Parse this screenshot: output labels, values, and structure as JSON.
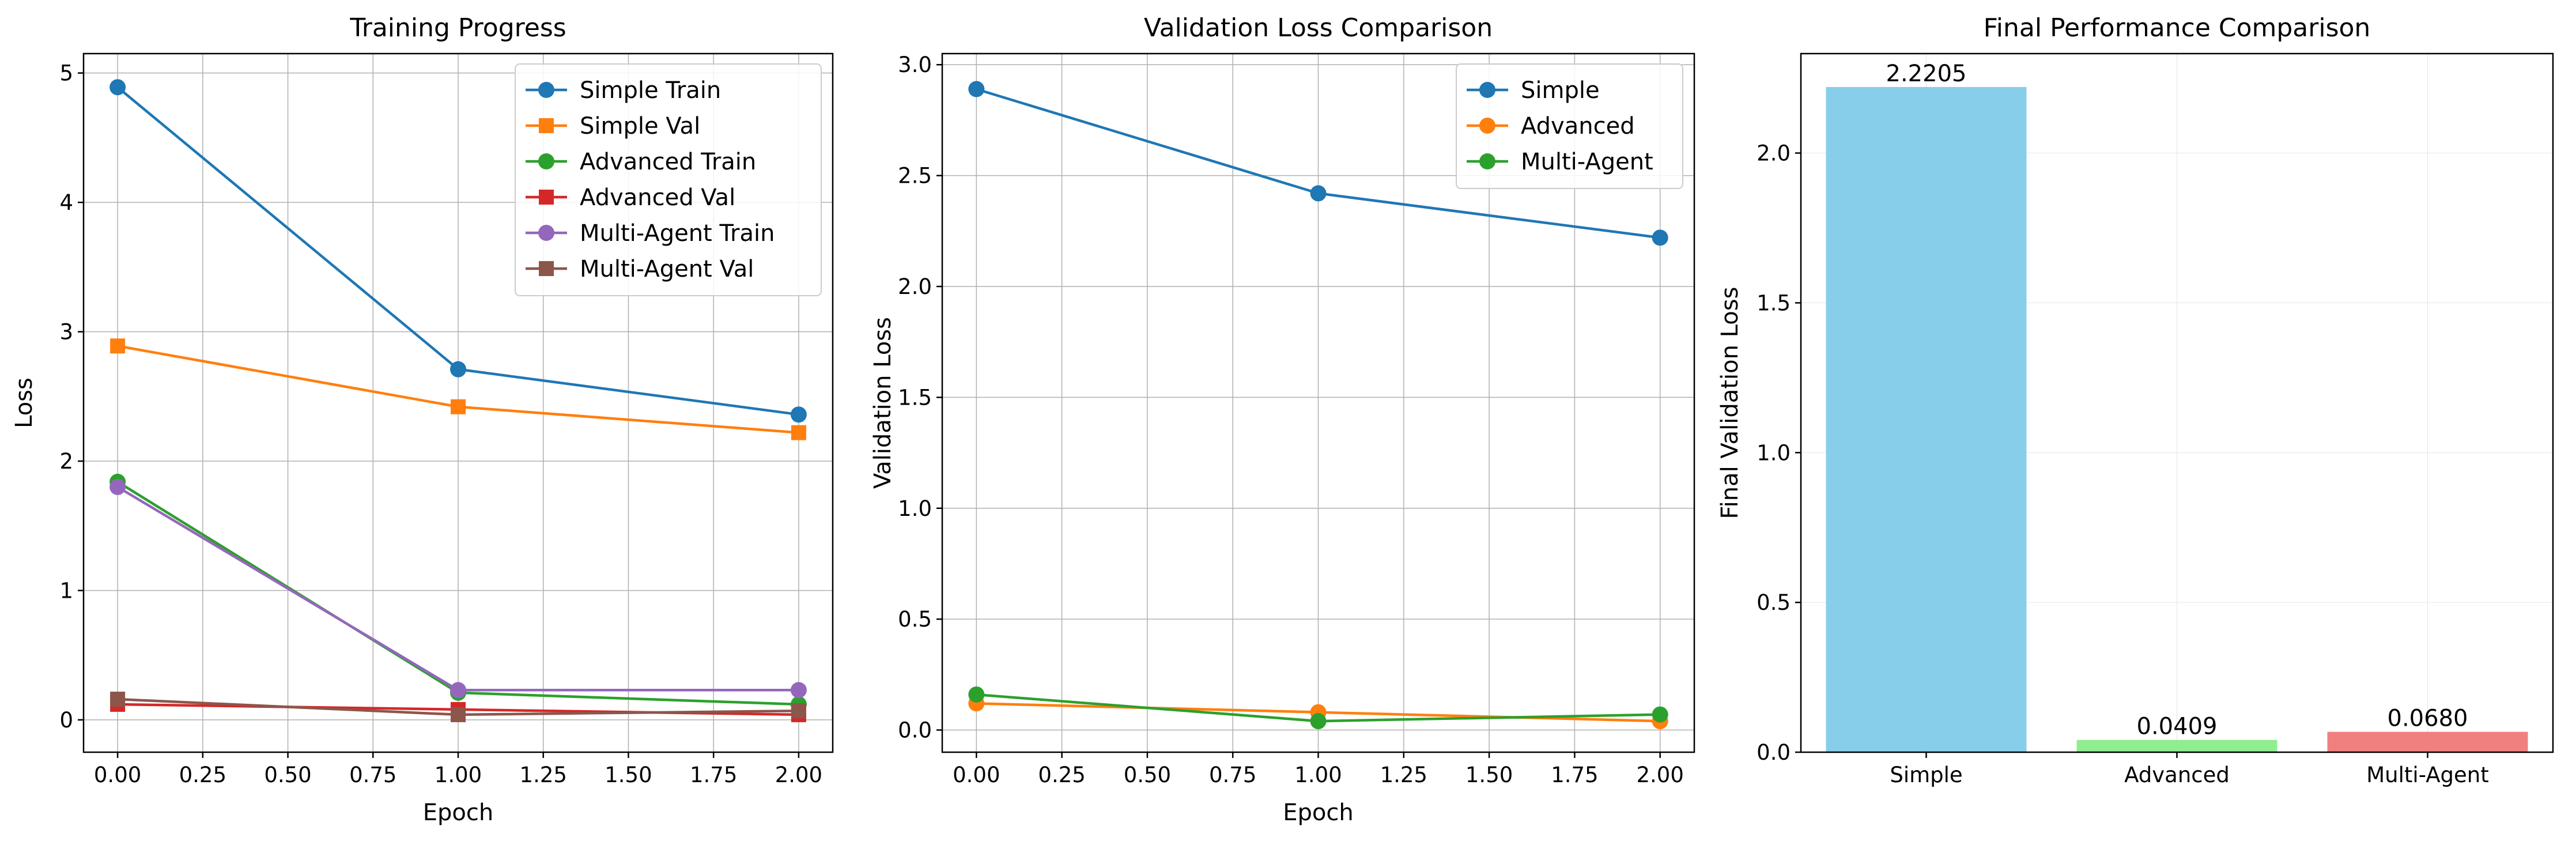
{
  "chart_data": [
    {
      "type": "line",
      "title": "Training Progress",
      "xlabel": "Epoch",
      "ylabel": "Loss",
      "xlim": [
        -0.1,
        2.1
      ],
      "ylim": [
        -0.25,
        5.15
      ],
      "xticks": [
        0,
        0.25,
        0.5,
        0.75,
        1,
        1.25,
        1.5,
        1.75,
        2
      ],
      "xtick_labels": [
        "0.00",
        "0.25",
        "0.50",
        "0.75",
        "1.00",
        "1.25",
        "1.50",
        "1.75",
        "2.00"
      ],
      "yticks": [
        0,
        1,
        2,
        3,
        4,
        5
      ],
      "ytick_labels": [
        "0",
        "1",
        "2",
        "3",
        "4",
        "5"
      ],
      "grid": true,
      "legend": "top-right",
      "x": [
        0,
        1,
        2
      ],
      "series": [
        {
          "name": "Simple Train",
          "values": [
            4.89,
            2.71,
            2.36
          ],
          "color": "#1f77b4",
          "marker": "circle"
        },
        {
          "name": "Simple Val",
          "values": [
            2.89,
            2.42,
            2.22
          ],
          "color": "#ff7f0e",
          "marker": "square"
        },
        {
          "name": "Advanced Train",
          "values": [
            1.84,
            0.21,
            0.12
          ],
          "color": "#2ca02c",
          "marker": "circle"
        },
        {
          "name": "Advanced Val",
          "values": [
            0.12,
            0.08,
            0.04
          ],
          "color": "#d62728",
          "marker": "square"
        },
        {
          "name": "Multi-Agent Train",
          "values": [
            1.8,
            0.23,
            0.23
          ],
          "color": "#9467bd",
          "marker": "circle"
        },
        {
          "name": "Multi-Agent Val",
          "values": [
            0.16,
            0.04,
            0.07
          ],
          "color": "#8c564b",
          "marker": "square"
        }
      ]
    },
    {
      "type": "line",
      "title": "Validation Loss Comparison",
      "xlabel": "Epoch",
      "ylabel": "Validation Loss",
      "xlim": [
        -0.1,
        2.1
      ],
      "ylim": [
        -0.1,
        3.05
      ],
      "xticks": [
        0,
        0.25,
        0.5,
        0.75,
        1,
        1.25,
        1.5,
        1.75,
        2
      ],
      "xtick_labels": [
        "0.00",
        "0.25",
        "0.50",
        "0.75",
        "1.00",
        "1.25",
        "1.50",
        "1.75",
        "2.00"
      ],
      "yticks": [
        0,
        0.5,
        1,
        1.5,
        2,
        2.5,
        3
      ],
      "ytick_labels": [
        "0.0",
        "0.5",
        "1.0",
        "1.5",
        "2.0",
        "2.5",
        "3.0"
      ],
      "grid": true,
      "legend": "top-right",
      "x": [
        0,
        1,
        2
      ],
      "series": [
        {
          "name": "Simple",
          "values": [
            2.89,
            2.42,
            2.22
          ],
          "color": "#1f77b4",
          "marker": "circle"
        },
        {
          "name": "Advanced",
          "values": [
            0.12,
            0.08,
            0.04
          ],
          "color": "#ff7f0e",
          "marker": "circle"
        },
        {
          "name": "Multi-Agent",
          "values": [
            0.16,
            0.04,
            0.07
          ],
          "color": "#2ca02c",
          "marker": "circle"
        }
      ]
    },
    {
      "type": "bar",
      "title": "Final Performance Comparison",
      "xlabel": "",
      "ylabel": "Final Validation Loss",
      "ylim": [
        0,
        2.332
      ],
      "yticks": [
        0,
        0.5,
        1,
        1.5,
        2
      ],
      "ytick_labels": [
        "0.0",
        "0.5",
        "1.0",
        "1.5",
        "2.0"
      ],
      "grid": true,
      "categories": [
        "Simple",
        "Advanced",
        "Multi-Agent"
      ],
      "values": [
        2.2205,
        0.0409,
        0.068
      ],
      "value_labels": [
        "2.2205",
        "0.0409",
        "0.0680"
      ],
      "colors": [
        "#87ceeb",
        "#90ee90",
        "#f08080"
      ]
    }
  ]
}
